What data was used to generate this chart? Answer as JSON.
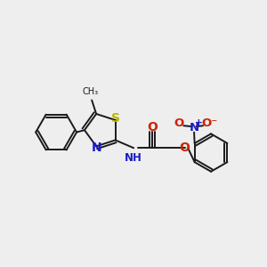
{
  "bg_color": "#eeeeee",
  "bond_color": "#1a1a1a",
  "S_color": "#b8b800",
  "N_color": "#1a1acc",
  "O_color": "#cc2200",
  "lw": 1.4,
  "font_size": 8.5,
  "figsize": [
    3.0,
    3.0
  ],
  "dpi": 100,
  "xlim": [
    0,
    10
  ],
  "ylim": [
    0,
    10
  ]
}
